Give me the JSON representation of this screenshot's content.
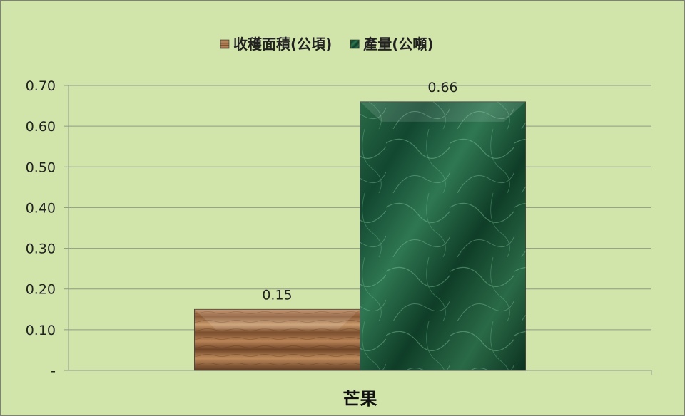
{
  "chart_data": {
    "type": "bar",
    "categories": [
      "芒果"
    ],
    "series": [
      {
        "name": "收穫面積(公頃)",
        "values": [
          0.15
        ],
        "color": "#9b6b45"
      },
      {
        "name": "產量(公噸)",
        "values": [
          0.66
        ],
        "color": "#1f5e3d"
      }
    ],
    "data_labels": [
      "0.15",
      "0.66"
    ],
    "ylim": [
      0,
      0.7
    ],
    "yticks": [
      0,
      0.1,
      0.2,
      0.3,
      0.4,
      0.5,
      0.6,
      0.7
    ],
    "ytick_labels": [
      "-",
      "0.10",
      "0.20",
      "0.30",
      "0.40",
      "0.50",
      "0.60",
      "0.70"
    ],
    "grid": true,
    "legend_position": "top",
    "background_color": "#d1e5ab"
  }
}
